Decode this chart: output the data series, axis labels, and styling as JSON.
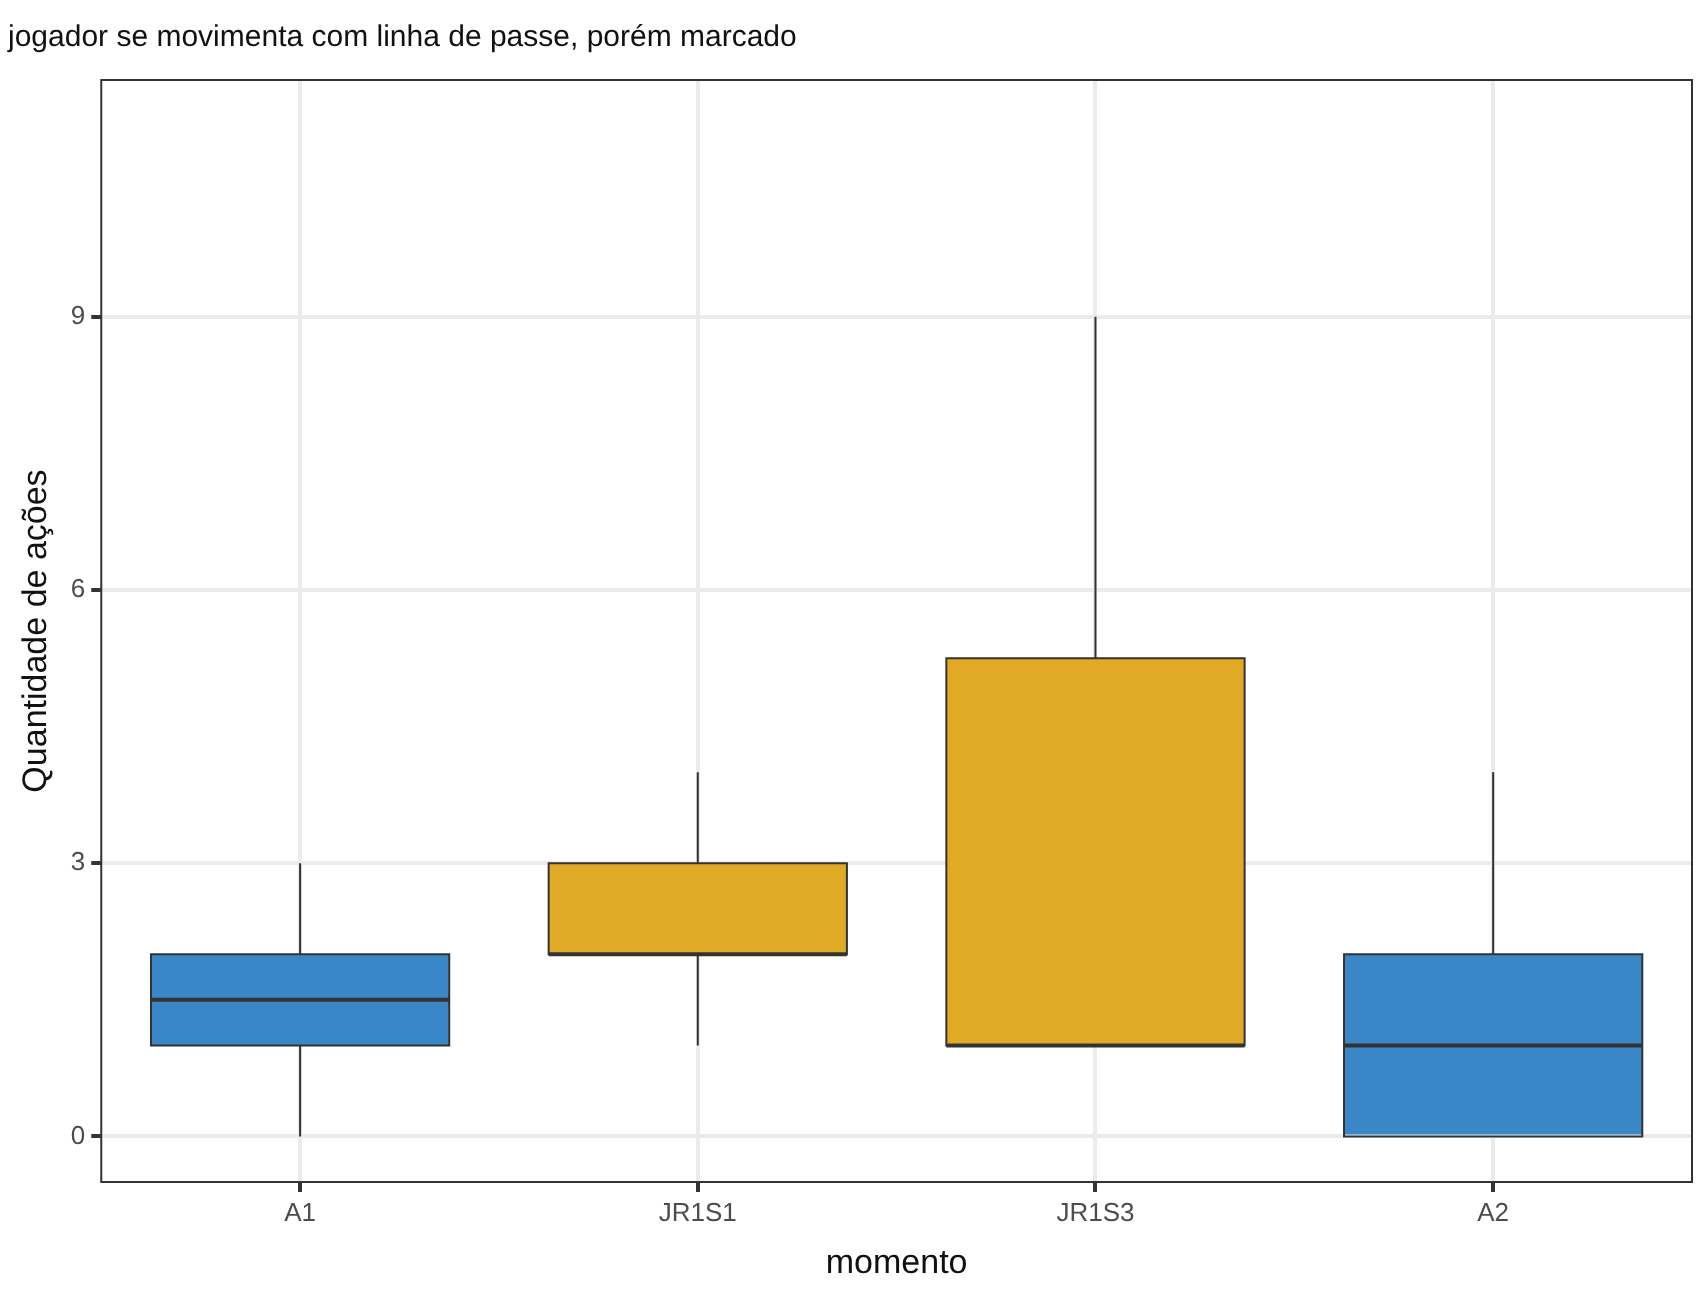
{
  "chart_data": {
    "type": "box",
    "title": "jogador se movimenta com linha de passe, porém marcado",
    "xlabel": "momento",
    "ylabel": "Quantidade de ações",
    "categories": [
      "A1",
      "JR1S1",
      "JR1S3",
      "A2"
    ],
    "colors": [
      "#3a87c8",
      "#e1aa26",
      "#e1aa26",
      "#3a87c8"
    ],
    "boxes": [
      {
        "low": 0,
        "q1": 1,
        "median": 1.5,
        "q3": 2,
        "high": 3
      },
      {
        "low": 1,
        "q1": 2,
        "median": 2,
        "q3": 3,
        "high": 4
      },
      {
        "low": 1,
        "q1": 1,
        "median": 1,
        "q3": 5.25,
        "high": 9
      },
      {
        "low": 0,
        "q1": 0,
        "median": 1,
        "q3": 2,
        "high": 4
      }
    ],
    "ylim": [
      -0.5,
      11.6
    ],
    "yticks": [
      0,
      3,
      6,
      9
    ],
    "grid": true,
    "legend": false
  }
}
